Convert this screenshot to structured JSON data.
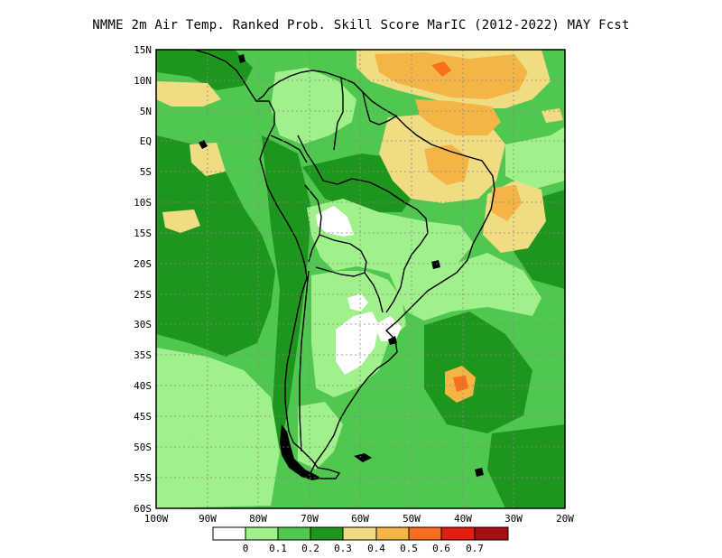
{
  "map": {
    "title": "NMME  2m Air Temp. Ranked Prob. Skill Score MarIC (2012-2022) MAY Fcst",
    "lat_labels": [
      "15N",
      "10N",
      "5N",
      "EQ",
      "5S",
      "10S",
      "15S",
      "20S",
      "25S",
      "30S",
      "35S",
      "40S",
      "45S",
      "50S",
      "55S",
      "60S"
    ],
    "lon_labels": [
      "100W",
      "90W",
      "80W",
      "70W",
      "60W",
      "50W",
      "40W",
      "30W",
      "20W"
    ]
  },
  "colorbar": {
    "colors": [
      "#ffffff",
      "#a0f08c",
      "#50c850",
      "#1e961e",
      "#f0dc82",
      "#f5b446",
      "#fa6e1e",
      "#e11e0f",
      "#a50f14"
    ],
    "labels": [
      "0",
      "0.1",
      "0.2",
      "0.3",
      "0.4",
      "0.5",
      "0.6",
      "0.7"
    ]
  }
}
